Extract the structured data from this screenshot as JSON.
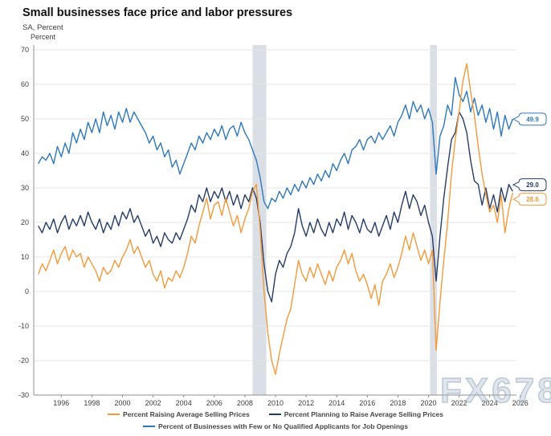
{
  "header": {
    "title": "Small businesses face price and labor pressures",
    "subtitle": "SA, Percent"
  },
  "watermark": "FX678",
  "chart_data": {
    "type": "line",
    "title": "Small businesses face price and labor pressures",
    "subtitle": "SA, Percent",
    "ylabel": "Percent",
    "ylim": [
      -30,
      70
    ],
    "yticks": [
      70,
      60,
      50,
      40,
      30,
      20,
      10,
      0,
      -10,
      -20,
      -30
    ],
    "xticks": [
      1996,
      1998,
      2000,
      2002,
      2004,
      2006,
      2008,
      2010,
      2012,
      2014,
      2016,
      2018,
      2020,
      2022,
      2024,
      2026
    ],
    "grid": true,
    "legend_position": "bottom",
    "legend_rows": [
      [
        0,
        1
      ],
      [
        2
      ]
    ],
    "x_start": 1994.5,
    "x_step": 0.25,
    "recessions": [
      {
        "from": 2008.5,
        "to": 2009.4
      },
      {
        "from": 2020.1,
        "to": 2020.55
      }
    ],
    "recession_color": "#DADEE5",
    "series": [
      {
        "name": "Percent Raising Average Selling Prices",
        "color": "#F49A3B",
        "end_label": "28.6",
        "values": [
          5,
          8,
          6,
          9,
          12,
          8,
          11,
          13,
          9,
          12,
          10,
          11,
          7,
          10,
          8,
          6,
          3,
          7,
          5,
          6,
          9,
          7,
          10,
          12,
          15,
          11,
          13,
          10,
          7,
          9,
          5,
          3,
          6,
          1,
          4,
          3,
          6,
          4,
          7,
          11,
          16,
          14,
          19,
          23,
          27,
          21,
          25,
          26,
          22,
          27,
          23,
          19,
          22,
          17,
          21,
          24,
          29,
          31,
          18,
          0,
          -12,
          -20,
          -24,
          -18,
          -13,
          -8,
          -5,
          2,
          9,
          5,
          3,
          7,
          4,
          8,
          5,
          2,
          6,
          3,
          7,
          9,
          12,
          8,
          11,
          6,
          3,
          5,
          2,
          -2,
          2,
          -4,
          3,
          5,
          8,
          4,
          7,
          11,
          16,
          12,
          17,
          13,
          9,
          12,
          8,
          12,
          -17,
          -3,
          9,
          20,
          34,
          44,
          52,
          61,
          66,
          58,
          51,
          42,
          34,
          28,
          23,
          25,
          20,
          28,
          17,
          24,
          28.6
        ]
      },
      {
        "name": "Percent Planning to Raise Average Selling Prices",
        "color": "#253D66",
        "end_label": "29.0",
        "values": [
          19,
          17,
          20,
          18,
          21,
          17,
          20,
          22,
          18,
          21,
          19,
          22,
          19,
          23,
          20,
          18,
          21,
          17,
          20,
          18,
          22,
          19,
          23,
          21,
          24,
          20,
          22,
          19,
          16,
          18,
          14,
          16,
          13,
          17,
          15,
          14,
          17,
          15,
          18,
          21,
          25,
          23,
          28,
          26,
          30,
          26,
          29,
          27,
          30,
          26,
          29,
          25,
          28,
          24,
          28,
          26,
          30,
          27,
          20,
          8,
          0,
          -3,
          5,
          9,
          7,
          11,
          13,
          17,
          24,
          19,
          16,
          20,
          17,
          21,
          18,
          16,
          20,
          17,
          21,
          19,
          23,
          18,
          22,
          20,
          17,
          21,
          18,
          17,
          20,
          16,
          19,
          22,
          18,
          23,
          20,
          25,
          29,
          24,
          28,
          26,
          22,
          25,
          20,
          16,
          3,
          16,
          27,
          36,
          44,
          46,
          52,
          50,
          46,
          38,
          32,
          31,
          25,
          30,
          24,
          28,
          23,
          30,
          26,
          31,
          29
        ]
      },
      {
        "name": "Percent of Businesses with Few or No Qualified Applicants for Job Openings",
        "color": "#2E78BE",
        "end_label": "49.9",
        "values": [
          37,
          39,
          38,
          40,
          37,
          42,
          39,
          43,
          40,
          46,
          43,
          47,
          44,
          49,
          46,
          50,
          46,
          52,
          48,
          51,
          47,
          52,
          49,
          53,
          49,
          52,
          50,
          48,
          46,
          43,
          45,
          41,
          43,
          39,
          41,
          36,
          38,
          34,
          37,
          40,
          43,
          41,
          45,
          43,
          46,
          44,
          47,
          45,
          48,
          44,
          47,
          48,
          45,
          49,
          46,
          44,
          41,
          38,
          33,
          26,
          24,
          27,
          26,
          29,
          27,
          30,
          28,
          31,
          29,
          32,
          30,
          33,
          31,
          34,
          32,
          35,
          33,
          37,
          35,
          38,
          40,
          37,
          41,
          42,
          44,
          41,
          44,
          45,
          43,
          46,
          44,
          46,
          48,
          45,
          49,
          51,
          54,
          50,
          55,
          52,
          54,
          50,
          53,
          49,
          34,
          45,
          48,
          54,
          51,
          62,
          57,
          55,
          58,
          52,
          56,
          51,
          54,
          49,
          53,
          47,
          52,
          45,
          51,
          47,
          49.9
        ]
      }
    ]
  }
}
